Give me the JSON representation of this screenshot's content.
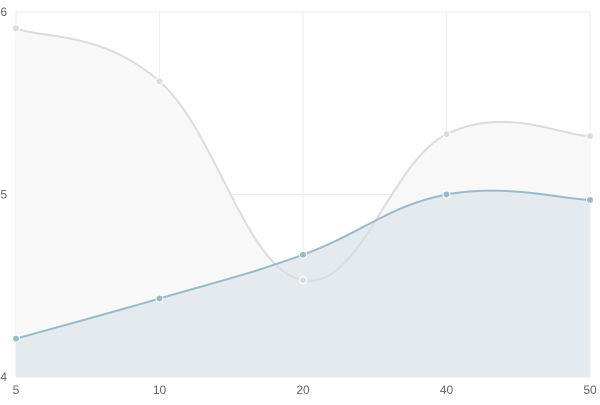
{
  "chart_data": {
    "type": "line",
    "area_fill": true,
    "smooth": true,
    "title": "",
    "xlabel": "",
    "ylabel": "",
    "x_ticks": [
      "5",
      "10",
      "20",
      "40",
      "50"
    ],
    "y_ticks": [
      "4",
      "5",
      "6"
    ],
    "ylim": [
      4,
      6
    ],
    "grid": true,
    "legend": "none",
    "series": [
      {
        "color": "#dcdcdc",
        "fill": "#f7f7f7",
        "values": [
          5.91,
          5.62,
          4.53,
          5.33,
          5.32
        ]
      },
      {
        "color": "#97bbcd",
        "fill": "#e1e8ec",
        "values": [
          4.21,
          4.43,
          4.67,
          5.0,
          4.97
        ]
      }
    ]
  }
}
